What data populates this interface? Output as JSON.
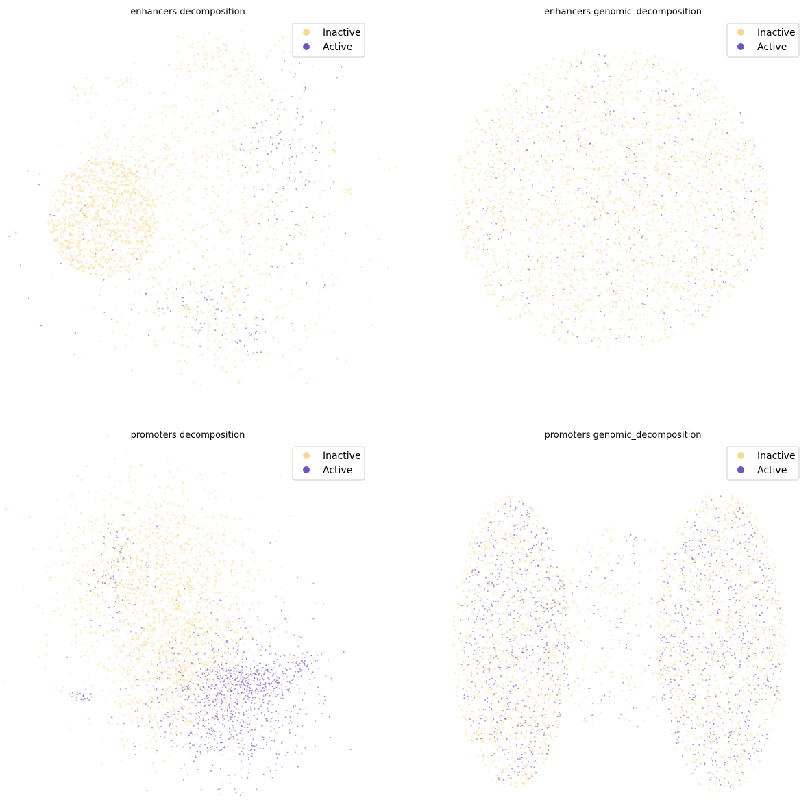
{
  "colors": {
    "inactive": "#f9d990",
    "active": "#7352c4",
    "legend_border": "#cccccc",
    "background": "#ffffff"
  },
  "legend_placement": "top-right",
  "chart_data": [
    {
      "type": "scatter",
      "title": "enhancers decomposition",
      "xlabel": "",
      "ylabel": "",
      "axes_visible": false,
      "grid": false,
      "legend": [
        "Inactive",
        "Active"
      ],
      "series": [
        {
          "name": "Inactive",
          "color": "#f9d990",
          "approx_points": 9000
        },
        {
          "name": "Active",
          "color": "#7352c4",
          "approx_points": 1100
        }
      ]
    },
    {
      "type": "scatter",
      "title": "enhancers genomic_decomposition",
      "xlabel": "",
      "ylabel": "",
      "axes_visible": false,
      "grid": false,
      "legend": [
        "Inactive",
        "Active"
      ],
      "series": [
        {
          "name": "Inactive",
          "color": "#f9d990",
          "approx_points": 10000
        },
        {
          "name": "Active",
          "color": "#7352c4",
          "approx_points": 1400
        }
      ]
    },
    {
      "type": "scatter",
      "title": "promoters decomposition",
      "xlabel": "",
      "ylabel": "",
      "axes_visible": false,
      "grid": false,
      "legend": [
        "Inactive",
        "Active"
      ],
      "series": [
        {
          "name": "Inactive",
          "color": "#f9d990",
          "approx_points": 8000
        },
        {
          "name": "Active",
          "color": "#7352c4",
          "approx_points": 5000
        }
      ]
    },
    {
      "type": "scatter",
      "title": "promoters genomic_decomposition",
      "xlabel": "",
      "ylabel": "",
      "axes_visible": false,
      "grid": false,
      "legend": [
        "Inactive",
        "Active"
      ],
      "series": [
        {
          "name": "Inactive",
          "color": "#f9d990",
          "approx_points": 9000
        },
        {
          "name": "Active",
          "color": "#7352c4",
          "approx_points": 6000
        }
      ]
    }
  ]
}
